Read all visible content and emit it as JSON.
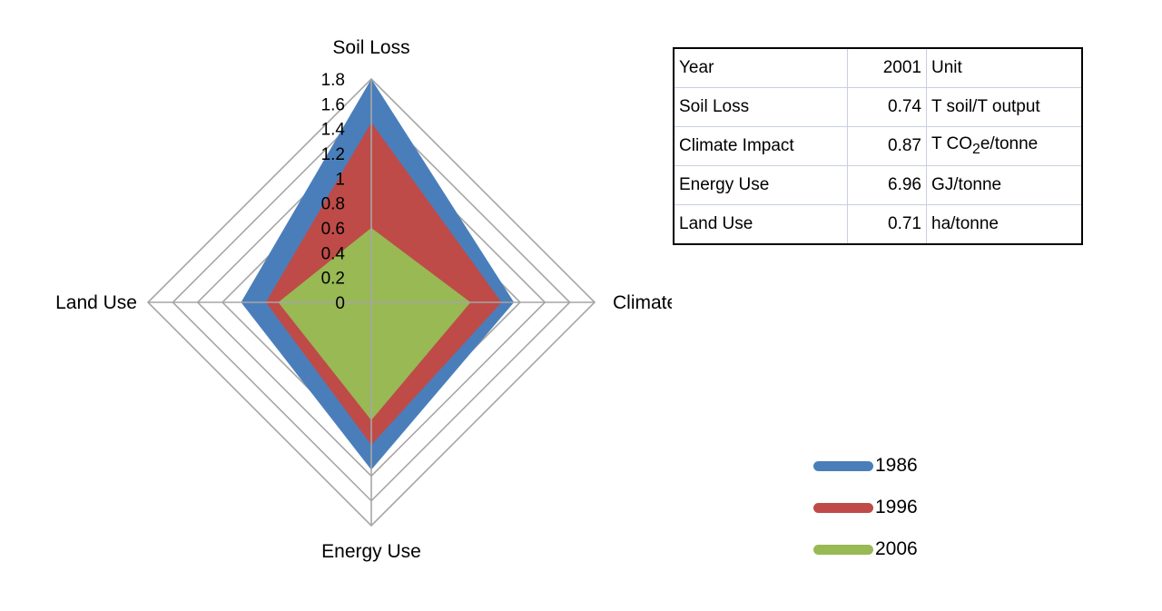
{
  "chart_data": {
    "type": "radar",
    "axes": [
      "Soil Loss",
      "Climate Impact",
      "Energy Use",
      "Land Use"
    ],
    "rmax": 1.8,
    "ticks": [
      "0",
      "0.2",
      "0.4",
      "0.6",
      "0.8",
      "1",
      "1.2",
      "1.4",
      "1.6",
      "1.8"
    ],
    "series": [
      {
        "name": "1986",
        "color": "#4a7ebb",
        "values": [
          1.8,
          1.15,
          1.35,
          1.05
        ]
      },
      {
        "name": "1996",
        "color": "#be4b48",
        "values": [
          1.45,
          1.05,
          1.15,
          0.85
        ]
      },
      {
        "name": "2006",
        "color": "#98b954",
        "values": [
          0.6,
          0.8,
          0.95,
          0.75
        ]
      }
    ]
  },
  "table": {
    "rows": [
      {
        "key": "Year",
        "value": "2001",
        "unit": "Unit"
      },
      {
        "key": "Soil Loss",
        "value": "0.74",
        "unit": "T soil/T output"
      },
      {
        "key": "Climate Impact",
        "value": "0.87",
        "unit_pre": "T CO",
        "unit_sub": "2",
        "unit_post": "e/tonne"
      },
      {
        "key": "Energy Use",
        "value": "6.96",
        "unit": "GJ/tonne"
      },
      {
        "key": "Land Use",
        "value": "0.71",
        "unit": "ha/tonne"
      }
    ]
  }
}
